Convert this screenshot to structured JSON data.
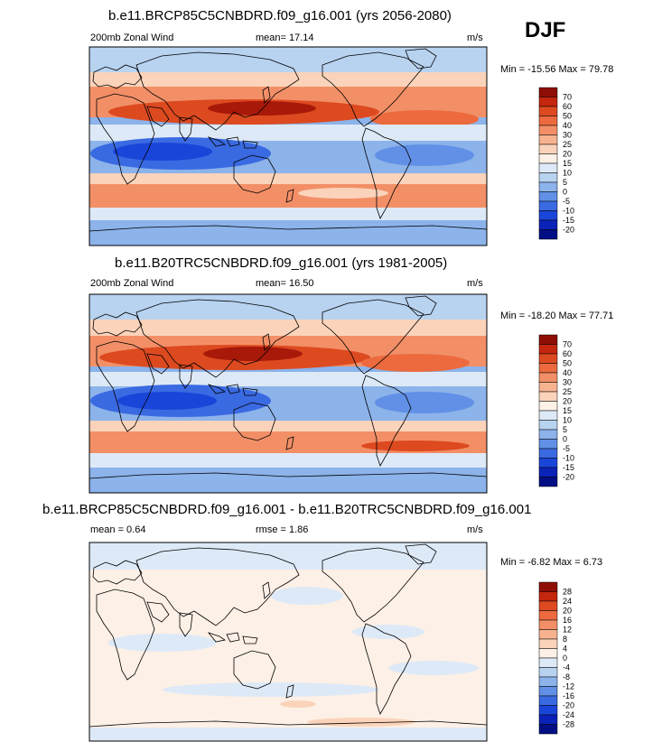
{
  "season": "DJF",
  "panels": [
    {
      "title": "b.e11.BRCP85C5CNBDRD.f09_g16.001 (yrs 2056-2080)",
      "left_label": "200mb Zonal Wind",
      "center_label": "mean=  17.14",
      "units": "m/s",
      "minmax": "Min = -15.56 Max =  79.78",
      "colorbar_labels": [
        "70",
        "60",
        "50",
        "40",
        "30",
        "25",
        "20",
        "15",
        "10",
        "5",
        "0",
        "-5",
        "-10",
        "-15",
        "-20"
      ],
      "colorbar_colors": [
        "#8e0e05",
        "#c4260e",
        "#dd4a20",
        "#ec6a3e",
        "#f28f67",
        "#f7b390",
        "#fad3ba",
        "#fdf0e6",
        "#dde9f7",
        "#b8d3f0",
        "#8cb3ea",
        "#6190e6",
        "#3a6ae2",
        "#1a45d9",
        "#0b22b8",
        "#020f84"
      ],
      "range": [
        -15.56,
        79.78
      ],
      "mean": 17.14
    },
    {
      "title": "b.e11.B20TRC5CNBDRD.f09_g16.001 (yrs 1981-2005)",
      "left_label": "200mb Zonal Wind",
      "center_label": "mean=  16.50",
      "units": "m/s",
      "minmax": "Min = -18.20 Max =  77.71",
      "colorbar_labels": [
        "70",
        "60",
        "50",
        "40",
        "30",
        "25",
        "20",
        "15",
        "10",
        "5",
        "0",
        "-5",
        "-10",
        "-15",
        "-20"
      ],
      "colorbar_colors": [
        "#8e0e05",
        "#c4260e",
        "#dd4a20",
        "#ec6a3e",
        "#f28f67",
        "#f7b390",
        "#fad3ba",
        "#fdf0e6",
        "#dde9f7",
        "#b8d3f0",
        "#8cb3ea",
        "#6190e6",
        "#3a6ae2",
        "#1a45d9",
        "#0b22b8",
        "#020f84"
      ],
      "range": [
        -18.2,
        77.71
      ],
      "mean": 16.5
    },
    {
      "title": "b.e11.BRCP85C5CNBDRD.f09_g16.001 - b.e11.B20TRC5CNBDRD.f09_g16.001",
      "left_label": "mean =   0.64",
      "center_label": "rmse =   1.86",
      "units": "m/s",
      "minmax": "Min =  -6.82 Max =   6.73",
      "colorbar_labels": [
        "28",
        "24",
        "20",
        "16",
        "12",
        "8",
        "4",
        "0",
        "-4",
        "-8",
        "-12",
        "-16",
        "-20",
        "-24",
        "-28"
      ],
      "colorbar_colors": [
        "#8e0e05",
        "#c4260e",
        "#dd4a20",
        "#ec6a3e",
        "#f28f67",
        "#f7b390",
        "#fad3ba",
        "#fdf0e6",
        "#dde9f7",
        "#b8d3f0",
        "#8cb3ea",
        "#6190e6",
        "#3a6ae2",
        "#1a45d9",
        "#0b22b8",
        "#020f84"
      ],
      "range": [
        -6.82,
        6.73
      ],
      "mean": 0.64
    }
  ]
}
